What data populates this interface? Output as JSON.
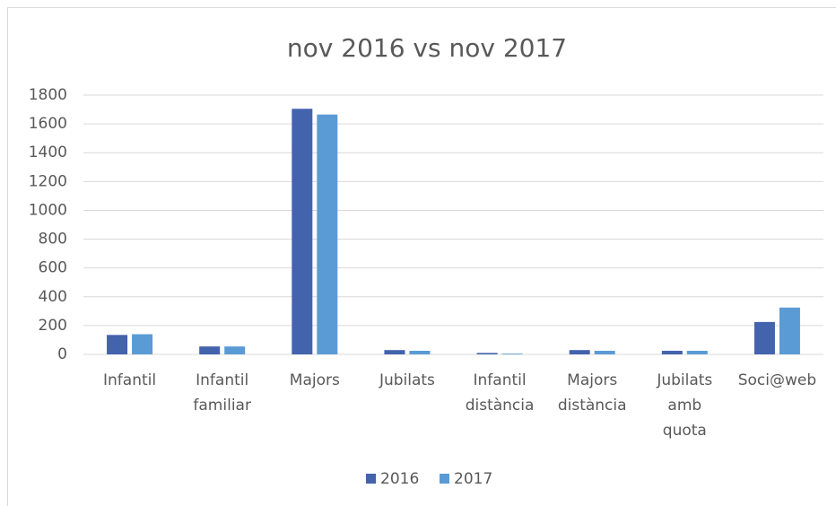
{
  "chart_data": {
    "type": "bar",
    "title": "nov 2016  vs nov 2017",
    "categories": [
      "Infantil",
      "Infantil familiar",
      "Majors",
      "Jubilats",
      "Infantil distància",
      "Majors distància",
      "Jubilats amb quota",
      "Soci@web"
    ],
    "series": [
      {
        "name": "2016",
        "color": "#4463ad",
        "values": [
          135,
          55,
          1705,
          30,
          10,
          30,
          25,
          225
        ]
      },
      {
        "name": "2017",
        "color": "#5b9bd5",
        "values": [
          140,
          55,
          1665,
          25,
          5,
          25,
          25,
          325
        ]
      }
    ],
    "ylim": [
      0,
      1800
    ],
    "yticks": [
      0,
      200,
      400,
      600,
      800,
      1000,
      1200,
      1400,
      1600,
      1800
    ],
    "grid": true,
    "legend": "bottom"
  }
}
